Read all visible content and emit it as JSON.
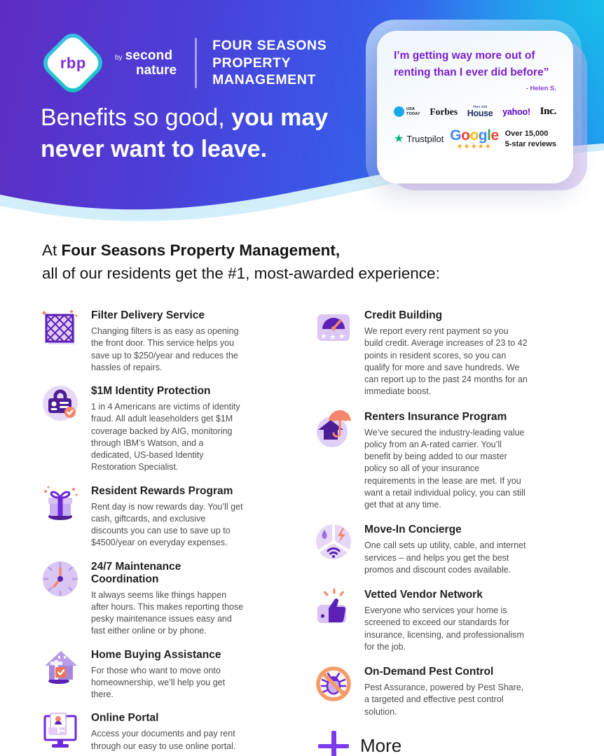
{
  "colors": {
    "brand_purple": "#7C3AED",
    "icon_dark_purple": "#5B21B6",
    "icon_light_purple": "#E3CCF8",
    "coral_accent": "#F4876B",
    "hero_gradient_left": "#5E2CC2",
    "hero_gradient_right": "#1F9BEF",
    "hero_corner_cyan": "#16C4E8",
    "trustpilot_green": "#00B67A",
    "google_star_gold": "#F2A50C",
    "quote_purple": "#7A1FD0"
  },
  "hero": {
    "logo": {
      "rbp": "rbp",
      "by": "by",
      "brand_line1": "second",
      "brand_line2": "nature"
    },
    "company_lines": [
      "FOUR SEASONS",
      "PROPERTY",
      "MANAGEMENT"
    ],
    "headline": {
      "light": "Benefits so good,",
      "bold_line1": "you may",
      "bold_line2": "never want to leave."
    }
  },
  "testimonial": {
    "quote_line1": "I’m getting way more out of",
    "quote_line2": "renting than I ever did before”",
    "attribution": "- Helen S.",
    "press": {
      "usa_today_top": "USA",
      "usa_today_bottom": "TODAY",
      "forbes": "Forbes",
      "toh_top": "This Old",
      "toh_bottom": "House",
      "yahoo": "yahoo!",
      "inc": "Inc."
    },
    "reviews": {
      "trustpilot_star": "★",
      "trustpilot": "Trustpilot",
      "google": {
        "letters": [
          {
            "ch": "G",
            "color": "#4285F4"
          },
          {
            "ch": "o",
            "color": "#EA4335"
          },
          {
            "ch": "o",
            "color": "#FBBC05"
          },
          {
            "ch": "g",
            "color": "#4285F4"
          },
          {
            "ch": "l",
            "color": "#34A853"
          },
          {
            "ch": "e",
            "color": "#EA4335"
          }
        ],
        "stars": "★★★★★"
      },
      "line1": "Over 15,000",
      "line2": "5-star reviews"
    }
  },
  "intro": {
    "prefix": "At ",
    "company": "Four Seasons Property Management,",
    "line2": "all of our residents get the #1, most-awarded experience:"
  },
  "benefits_left": [
    {
      "icon": "filter-icon",
      "title": "Filter Delivery Service",
      "description": "Changing filters is as easy as opening the front door. This service helps you save up to $250/year and reduces the hassles of repairs."
    },
    {
      "icon": "identity-icon",
      "title": "$1M Identity Protection",
      "description": "1 in 4 Americans are victims of identity fraud. All adult leaseholders get $1M coverage backed by AIG, monitoring through IBM’s Watson, and a dedicated, US-based Identity Restoration Specialist."
    },
    {
      "icon": "gift-icon",
      "title": "Resident Rewards Program",
      "description": "Rent day is now rewards day. You’ll get cash, giftcards, and exclusive discounts you can use to save up to $4500/year on everyday expenses."
    },
    {
      "icon": "clock-icon",
      "title": "24/7 Maintenance Coordination",
      "description": "It always seems like things happen after hours. This makes reporting those pesky maintenance issues easy and fast either online or by phone."
    },
    {
      "icon": "home-icon",
      "title": "Home Buying Assistance",
      "description": "For those who want to move onto homeownership, we’ll help you get there."
    },
    {
      "icon": "portal-icon",
      "title": "Online Portal",
      "description": "Access your documents and pay rent through our easy to use online portal."
    }
  ],
  "benefits_right": [
    {
      "icon": "credit-icon",
      "title": "Credit Building",
      "description": "We report every rent payment so you build credit. Average increases of 23 to 42 points in resident scores, so you can qualify for more and save hundreds. We can report up to the past 24 months for an immediate boost."
    },
    {
      "icon": "insurance-icon",
      "title": "Renters Insurance Program",
      "description": "We’ve secured the industry-leading value policy from an A-rated carrier. You’ll benefit by being added to our master policy so all of your insurance requirements in the lease are met. If you want a retail individual policy, you can still get that at any time."
    },
    {
      "icon": "concierge-icon",
      "title": "Move-In Concierge",
      "description": "One call sets up utility, cable, and internet services – and helps you get the best promos and discount codes available."
    },
    {
      "icon": "vendor-icon",
      "title": "Vetted Vendor Network",
      "description": "Everyone who services your home is screened to exceed our standards for insurance, licensing, and professionalism for the job."
    },
    {
      "icon": "pest-icon",
      "title": "On-Demand Pest Control",
      "description": "Pest Assurance, powered by Pest Share, a targeted and effective pest control solution."
    }
  ],
  "more": {
    "label": "More"
  }
}
